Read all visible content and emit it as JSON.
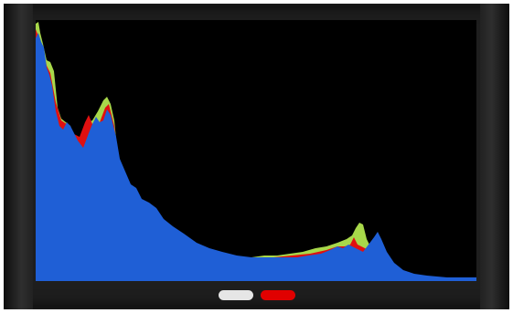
{
  "monitor": {
    "screen_background": "#000000",
    "bezel_color": "#1e1e1e"
  },
  "histogram": {
    "channels": [
      {
        "name": "green",
        "color": "#a8d84a"
      },
      {
        "name": "red",
        "color": "#e01010"
      },
      {
        "name": "blue",
        "color": "#1f5fd6"
      }
    ]
  },
  "indicators": [
    {
      "name": "white",
      "color": "#e6e6e6"
    },
    {
      "name": "red",
      "color": "#e00000"
    }
  ]
}
